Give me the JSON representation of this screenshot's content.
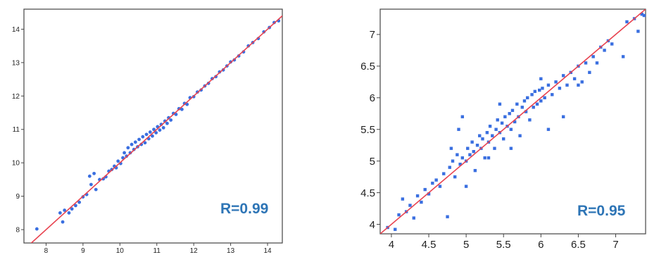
{
  "chart_data": [
    {
      "type": "scatter",
      "title": "",
      "xlabel": "",
      "ylabel": "",
      "xlim": [
        7.4,
        14.4
      ],
      "ylim": [
        7.6,
        14.6
      ],
      "x_ticks": [
        "8",
        "9",
        "10",
        "11",
        "12",
        "13",
        "14"
      ],
      "y_ticks": [
        "8",
        "9",
        "10",
        "11",
        "12",
        "13",
        "14"
      ],
      "annotation": "R=0.99",
      "correlation": 0.99,
      "fit_line": {
        "slope": 1,
        "intercept": 0
      },
      "point_color": "#3a6fe0",
      "line_color": "#e8424f",
      "annotation_color": "#2e75b6",
      "grid": false,
      "series": [
        {
          "points": [
            [
              7.75,
              8.02
            ],
            [
              8.38,
              8.5
            ],
            [
              8.45,
              8.23
            ],
            [
              8.5,
              8.58
            ],
            [
              8.62,
              8.5
            ],
            [
              8.7,
              8.62
            ],
            [
              8.8,
              8.72
            ],
            [
              8.9,
              8.82
            ],
            [
              9.0,
              8.98
            ],
            [
              9.1,
              9.05
            ],
            [
              9.18,
              9.6
            ],
            [
              9.22,
              9.35
            ],
            [
              9.3,
              9.68
            ],
            [
              9.35,
              9.2
            ],
            [
              9.45,
              9.5
            ],
            [
              9.55,
              9.52
            ],
            [
              9.62,
              9.58
            ],
            [
              9.7,
              9.75
            ],
            [
              9.78,
              9.8
            ],
            [
              9.85,
              9.9
            ],
            [
              9.9,
              9.85
            ],
            [
              9.95,
              10.05
            ],
            [
              10.02,
              9.98
            ],
            [
              10.08,
              10.15
            ],
            [
              10.12,
              10.3
            ],
            [
              10.18,
              10.2
            ],
            [
              10.22,
              10.45
            ],
            [
              10.28,
              10.3
            ],
            [
              10.32,
              10.55
            ],
            [
              10.38,
              10.4
            ],
            [
              10.42,
              10.62
            ],
            [
              10.48,
              10.48
            ],
            [
              10.52,
              10.7
            ],
            [
              10.58,
              10.55
            ],
            [
              10.62,
              10.78
            ],
            [
              10.68,
              10.6
            ],
            [
              10.72,
              10.85
            ],
            [
              10.78,
              10.72
            ],
            [
              10.82,
              10.92
            ],
            [
              10.88,
              10.8
            ],
            [
              10.92,
              11.0
            ],
            [
              10.98,
              10.9
            ],
            [
              11.02,
              11.08
            ],
            [
              11.08,
              10.98
            ],
            [
              11.12,
              11.15
            ],
            [
              11.18,
              11.05
            ],
            [
              11.22,
              11.25
            ],
            [
              11.28,
              11.18
            ],
            [
              11.32,
              11.35
            ],
            [
              11.38,
              11.28
            ],
            [
              11.45,
              11.48
            ],
            [
              11.52,
              11.45
            ],
            [
              11.6,
              11.62
            ],
            [
              11.68,
              11.6
            ],
            [
              11.75,
              11.78
            ],
            [
              11.82,
              11.75
            ],
            [
              11.9,
              11.95
            ],
            [
              12.0,
              11.98
            ],
            [
              12.1,
              12.12
            ],
            [
              12.2,
              12.18
            ],
            [
              12.3,
              12.3
            ],
            [
              12.4,
              12.38
            ],
            [
              12.5,
              12.52
            ],
            [
              12.6,
              12.58
            ],
            [
              12.7,
              12.72
            ],
            [
              12.8,
              12.78
            ],
            [
              12.9,
              12.9
            ],
            [
              13.0,
              13.02
            ],
            [
              13.1,
              13.08
            ],
            [
              13.22,
              13.2
            ],
            [
              13.35,
              13.32
            ],
            [
              13.48,
              13.5
            ],
            [
              13.6,
              13.6
            ],
            [
              13.75,
              13.72
            ],
            [
              13.9,
              13.92
            ],
            [
              14.05,
              14.05
            ],
            [
              14.18,
              14.2
            ],
            [
              14.3,
              14.25
            ]
          ]
        }
      ]
    },
    {
      "type": "scatter",
      "title": "",
      "xlabel": "",
      "ylabel": "",
      "xlim": [
        3.85,
        7.4
      ],
      "ylim": [
        3.85,
        7.4
      ],
      "x_ticks": [
        "4",
        "4.5",
        "5",
        "5.5",
        "6",
        "6.5",
        "7"
      ],
      "y_ticks": [
        "4",
        "4.5",
        "5",
        "5.5",
        "6",
        "6.5",
        "7"
      ],
      "annotation": "R=0.95",
      "correlation": 0.95,
      "fit_line": {
        "slope": 1,
        "intercept": 0
      },
      "point_color": "#3a6fe0",
      "line_color": "#e8424f",
      "annotation_color": "#2e75b6",
      "grid": false,
      "series": [
        {
          "points": [
            [
              3.95,
              3.95
            ],
            [
              4.05,
              3.92
            ],
            [
              4.1,
              4.15
            ],
            [
              4.15,
              4.4
            ],
            [
              4.2,
              4.2
            ],
            [
              4.25,
              4.3
            ],
            [
              4.3,
              4.1
            ],
            [
              4.35,
              4.45
            ],
            [
              4.4,
              4.35
            ],
            [
              4.45,
              4.55
            ],
            [
              4.5,
              4.48
            ],
            [
              4.55,
              4.65
            ],
            [
              4.6,
              4.7
            ],
            [
              4.65,
              4.6
            ],
            [
              4.7,
              4.8
            ],
            [
              4.75,
              4.12
            ],
            [
              4.78,
              4.9
            ],
            [
              4.82,
              5.0
            ],
            [
              4.85,
              4.75
            ],
            [
              4.88,
              5.1
            ],
            [
              4.9,
              5.5
            ],
            [
              4.92,
              4.95
            ],
            [
              4.95,
              5.05
            ],
            [
              5.0,
              5.0
            ],
            [
              5.02,
              5.2
            ],
            [
              5.05,
              5.1
            ],
            [
              5.08,
              5.3
            ],
            [
              5.1,
              5.15
            ],
            [
              5.12,
              4.85
            ],
            [
              5.15,
              5.25
            ],
            [
              5.18,
              5.4
            ],
            [
              5.2,
              5.2
            ],
            [
              5.22,
              5.35
            ],
            [
              5.25,
              5.05
            ],
            [
              5.28,
              5.45
            ],
            [
              5.3,
              5.3
            ],
            [
              5.32,
              5.55
            ],
            [
              5.35,
              5.4
            ],
            [
              5.38,
              5.2
            ],
            [
              5.4,
              5.5
            ],
            [
              5.42,
              5.65
            ],
            [
              5.45,
              5.45
            ],
            [
              5.48,
              5.6
            ],
            [
              5.5,
              5.35
            ],
            [
              5.52,
              5.7
            ],
            [
              5.55,
              5.55
            ],
            [
              5.58,
              5.75
            ],
            [
              5.6,
              5.5
            ],
            [
              5.62,
              5.8
            ],
            [
              5.65,
              5.62
            ],
            [
              5.68,
              5.9
            ],
            [
              5.7,
              5.7
            ],
            [
              5.72,
              5.4
            ],
            [
              5.75,
              5.85
            ],
            [
              5.78,
              5.95
            ],
            [
              5.8,
              5.78
            ],
            [
              5.82,
              6.0
            ],
            [
              5.85,
              5.65
            ],
            [
              5.88,
              6.05
            ],
            [
              5.9,
              5.85
            ],
            [
              5.92,
              6.1
            ],
            [
              5.95,
              5.9
            ],
            [
              5.98,
              6.12
            ],
            [
              6.0,
              5.95
            ],
            [
              6.02,
              6.15
            ],
            [
              6.05,
              6.0
            ],
            [
              6.1,
              6.2
            ],
            [
              6.15,
              6.05
            ],
            [
              6.2,
              6.25
            ],
            [
              6.25,
              6.15
            ],
            [
              6.3,
              6.35
            ],
            [
              6.35,
              6.2
            ],
            [
              6.4,
              6.4
            ],
            [
              6.45,
              6.3
            ],
            [
              6.5,
              6.5
            ],
            [
              6.55,
              6.25
            ],
            [
              6.6,
              6.55
            ],
            [
              6.65,
              6.4
            ],
            [
              6.7,
              6.65
            ],
            [
              6.75,
              6.55
            ],
            [
              6.8,
              6.8
            ],
            [
              6.85,
              6.75
            ],
            [
              6.9,
              6.9
            ],
            [
              6.95,
              6.85
            ],
            [
              7.1,
              6.65
            ],
            [
              7.15,
              7.2
            ],
            [
              7.25,
              7.25
            ],
            [
              7.3,
              7.05
            ],
            [
              7.35,
              7.32
            ],
            [
              7.38,
              7.3
            ],
            [
              5.0,
              4.6
            ],
            [
              4.95,
              5.7
            ],
            [
              6.3,
              5.7
            ],
            [
              6.5,
              6.2
            ],
            [
              5.6,
              5.2
            ],
            [
              6.1,
              5.5
            ],
            [
              4.8,
              5.2
            ],
            [
              5.45,
              5.9
            ],
            [
              6.0,
              6.3
            ],
            [
              5.3,
              5.05
            ]
          ]
        }
      ]
    }
  ]
}
